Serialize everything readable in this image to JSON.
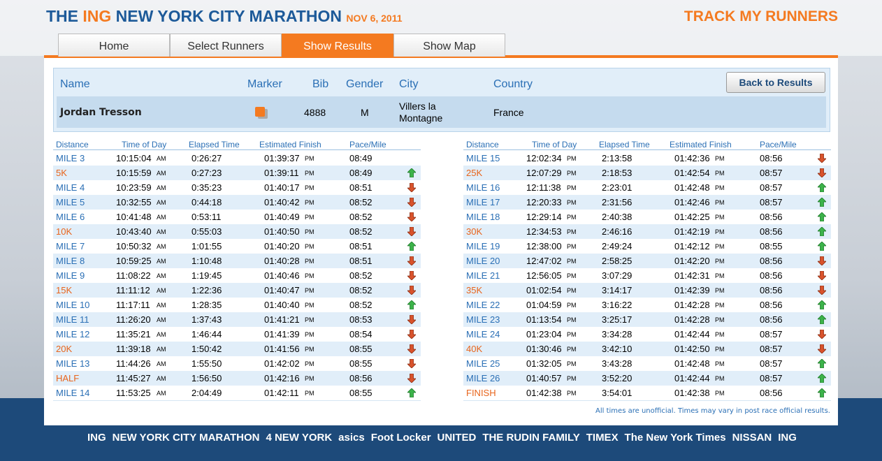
{
  "header": {
    "the": "THE",
    "ing": "ING",
    "name": "NEW YORK CITY MARATHON",
    "date": "NOV 6, 2011",
    "track": "TRACK MY RUNNERS"
  },
  "tabs": [
    {
      "label": "Home",
      "active": false
    },
    {
      "label": "Select Runners",
      "active": false
    },
    {
      "label": "Show Results",
      "active": true
    },
    {
      "label": "Show Map",
      "active": false
    }
  ],
  "runner": {
    "columns": [
      "Name",
      "Marker",
      "Bib",
      "Gender",
      "City",
      "Country"
    ],
    "name": "Jordan Tresson",
    "bib": "4888",
    "gender": "M",
    "city": "Villers la Montagne",
    "country": "France",
    "button": "Back to Results"
  },
  "splits": {
    "columns": [
      "Distance",
      "Time of Day",
      "Elapsed Time",
      "Estimated Finish",
      "Pace/Mile"
    ],
    "left": [
      [
        "MILE 3",
        "10:15:04",
        "AM",
        "0:26:27",
        "01:39:37",
        "PM",
        "08:49",
        null
      ],
      [
        "5K",
        "10:15:59",
        "AM",
        "0:27:23",
        "01:39:11",
        "PM",
        "08:49",
        "up"
      ],
      [
        "MILE 4",
        "10:23:59",
        "AM",
        "0:35:23",
        "01:40:17",
        "PM",
        "08:51",
        "down"
      ],
      [
        "MILE 5",
        "10:32:55",
        "AM",
        "0:44:18",
        "01:40:42",
        "PM",
        "08:52",
        "down"
      ],
      [
        "MILE 6",
        "10:41:48",
        "AM",
        "0:53:11",
        "01:40:49",
        "PM",
        "08:52",
        "down"
      ],
      [
        "10K",
        "10:43:40",
        "AM",
        "0:55:03",
        "01:40:50",
        "PM",
        "08:52",
        "down"
      ],
      [
        "MILE 7",
        "10:50:32",
        "AM",
        "1:01:55",
        "01:40:20",
        "PM",
        "08:51",
        "up"
      ],
      [
        "MILE 8",
        "10:59:25",
        "AM",
        "1:10:48",
        "01:40:28",
        "PM",
        "08:51",
        "down"
      ],
      [
        "MILE 9",
        "11:08:22",
        "AM",
        "1:19:45",
        "01:40:46",
        "PM",
        "08:52",
        "down"
      ],
      [
        "15K",
        "11:11:12",
        "AM",
        "1:22:36",
        "01:40:47",
        "PM",
        "08:52",
        "down"
      ],
      [
        "MILE 10",
        "11:17:11",
        "AM",
        "1:28:35",
        "01:40:40",
        "PM",
        "08:52",
        "up"
      ],
      [
        "MILE 11",
        "11:26:20",
        "AM",
        "1:37:43",
        "01:41:21",
        "PM",
        "08:53",
        "down"
      ],
      [
        "MILE 12",
        "11:35:21",
        "AM",
        "1:46:44",
        "01:41:39",
        "PM",
        "08:54",
        "down"
      ],
      [
        "20K",
        "11:39:18",
        "AM",
        "1:50:42",
        "01:41:56",
        "PM",
        "08:55",
        "down"
      ],
      [
        "MILE 13",
        "11:44:26",
        "AM",
        "1:55:50",
        "01:42:02",
        "PM",
        "08:55",
        "down"
      ],
      [
        "HALF",
        "11:45:27",
        "AM",
        "1:56:50",
        "01:42:16",
        "PM",
        "08:56",
        "down"
      ],
      [
        "MILE 14",
        "11:53:25",
        "AM",
        "2:04:49",
        "01:42:11",
        "PM",
        "08:55",
        "up"
      ]
    ],
    "right": [
      [
        "MILE 15",
        "12:02:34",
        "PM",
        "2:13:58",
        "01:42:36",
        "PM",
        "08:56",
        "down"
      ],
      [
        "25K",
        "12:07:29",
        "PM",
        "2:18:53",
        "01:42:54",
        "PM",
        "08:57",
        "down"
      ],
      [
        "MILE 16",
        "12:11:38",
        "PM",
        "2:23:01",
        "01:42:48",
        "PM",
        "08:57",
        "up"
      ],
      [
        "MILE 17",
        "12:20:33",
        "PM",
        "2:31:56",
        "01:42:46",
        "PM",
        "08:57",
        "up"
      ],
      [
        "MILE 18",
        "12:29:14",
        "PM",
        "2:40:38",
        "01:42:25",
        "PM",
        "08:56",
        "up"
      ],
      [
        "30K",
        "12:34:53",
        "PM",
        "2:46:16",
        "01:42:19",
        "PM",
        "08:56",
        "up"
      ],
      [
        "MILE 19",
        "12:38:00",
        "PM",
        "2:49:24",
        "01:42:12",
        "PM",
        "08:55",
        "up"
      ],
      [
        "MILE 20",
        "12:47:02",
        "PM",
        "2:58:25",
        "01:42:20",
        "PM",
        "08:56",
        "down"
      ],
      [
        "MILE 21",
        "12:56:05",
        "PM",
        "3:07:29",
        "01:42:31",
        "PM",
        "08:56",
        "down"
      ],
      [
        "35K",
        "01:02:54",
        "PM",
        "3:14:17",
        "01:42:39",
        "PM",
        "08:56",
        "down"
      ],
      [
        "MILE 22",
        "01:04:59",
        "PM",
        "3:16:22",
        "01:42:28",
        "PM",
        "08:56",
        "up"
      ],
      [
        "MILE 23",
        "01:13:54",
        "PM",
        "3:25:17",
        "01:42:28",
        "PM",
        "08:56",
        "up"
      ],
      [
        "MILE 24",
        "01:23:04",
        "PM",
        "3:34:28",
        "01:42:44",
        "PM",
        "08:57",
        "down"
      ],
      [
        "40K",
        "01:30:46",
        "PM",
        "3:42:10",
        "01:42:50",
        "PM",
        "08:57",
        "down"
      ],
      [
        "MILE 25",
        "01:32:05",
        "PM",
        "3:43:28",
        "01:42:48",
        "PM",
        "08:57",
        "up"
      ],
      [
        "MILE 26",
        "01:40:57",
        "PM",
        "3:52:20",
        "01:42:44",
        "PM",
        "08:57",
        "up"
      ],
      [
        "FINISH",
        "01:42:38",
        "PM",
        "3:54:01",
        "01:42:38",
        "PM",
        "08:56",
        "up"
      ]
    ]
  },
  "footnote": "All times are unofficial. Times may vary in post race official results.",
  "sponsors": [
    "ING",
    "NEW YORK CITY MARATHON",
    "4 NEW YORK",
    "asics",
    "Foot Locker",
    "UNITED",
    "THE RUDIN FAMILY",
    "TIMEX",
    "The New York Times",
    "NISSAN",
    "ING"
  ]
}
